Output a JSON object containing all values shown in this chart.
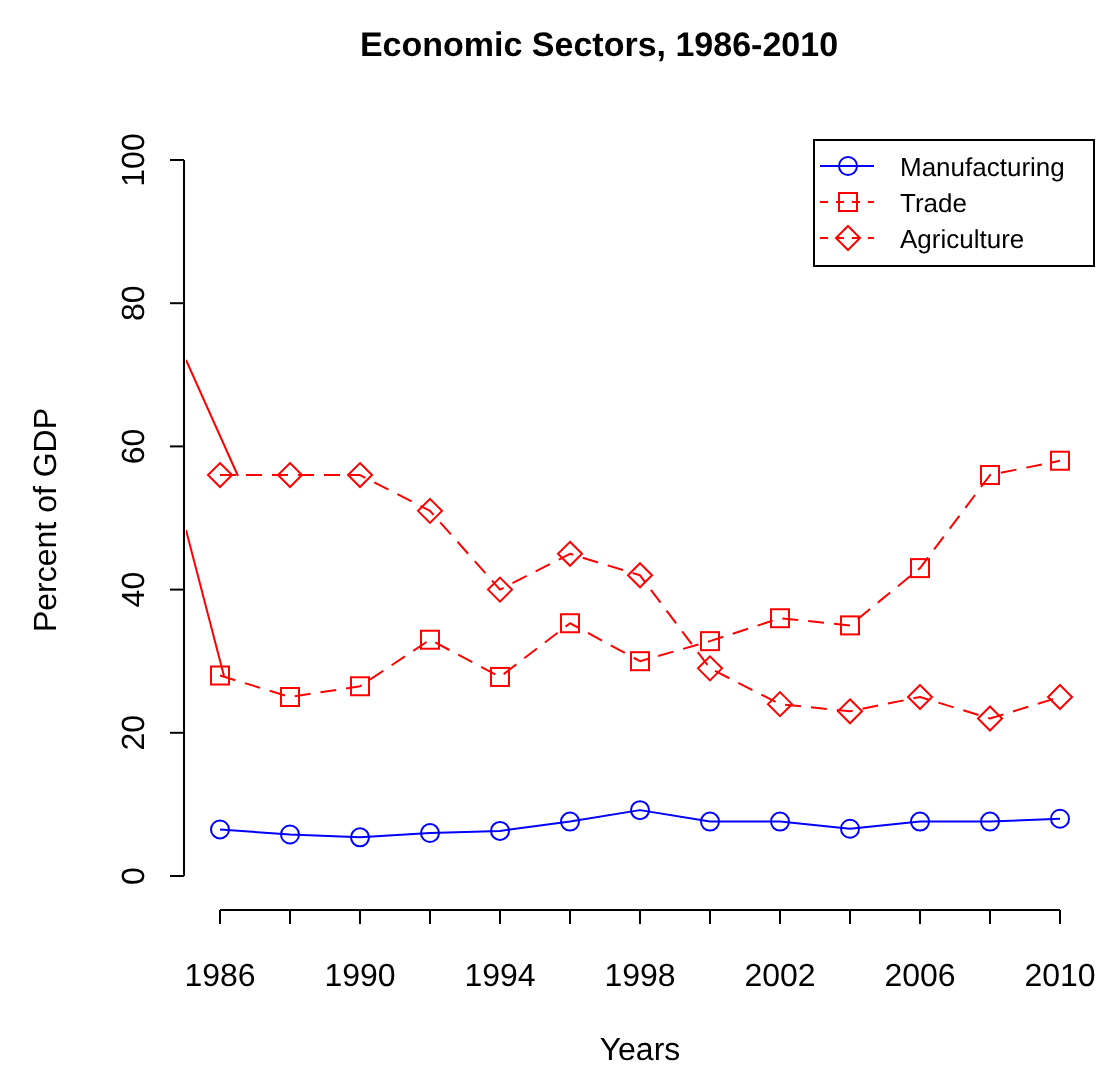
{
  "chart_data": {
    "type": "line",
    "title": "Economic Sectors, 1986-2010",
    "xlabel": "Years",
    "ylabel": "Percent of GDP",
    "x": [
      1986,
      1988,
      1990,
      1992,
      1994,
      1996,
      1998,
      2000,
      2002,
      2004,
      2006,
      2008,
      2010
    ],
    "series": [
      {
        "name": "Manufacturing",
        "color": "#0000ff",
        "marker": "circle",
        "line_style": "solid",
        "values": [
          6.5,
          5.8,
          5.4,
          6,
          6.3,
          7.6,
          9.2,
          7.6,
          7.6,
          6.6,
          7.6,
          7.6,
          8
        ]
      },
      {
        "name": "Trade",
        "color": "#ff0000",
        "marker": "square",
        "line_style": "dashed",
        "values": [
          28,
          25,
          26.5,
          33,
          27.8,
          35.3,
          30,
          32.8,
          36,
          35,
          43,
          56,
          58
        ]
      },
      {
        "name": "Agriculture",
        "color": "#ff0000",
        "marker": "diamond",
        "line_style": "dashed",
        "values": [
          56,
          56,
          56,
          51,
          40,
          45,
          42,
          29,
          24,
          23,
          25,
          22,
          25
        ]
      }
    ],
    "xlim": [
      1986,
      2010
    ],
    "ylim": [
      0,
      100
    ],
    "xticks": [
      1986,
      1990,
      1994,
      1998,
      2002,
      2006,
      2010
    ],
    "yticks": [
      0,
      20,
      40,
      60,
      80,
      100
    ],
    "legend": "top right",
    "grid": false
  }
}
